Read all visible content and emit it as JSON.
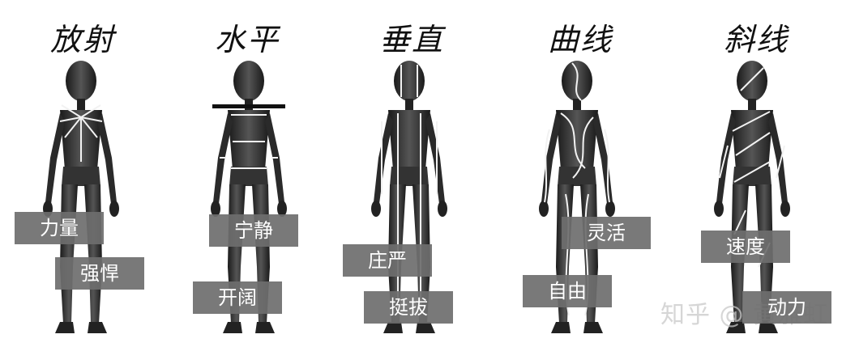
{
  "figures": [
    {
      "id": "radial",
      "title": "放射",
      "tags": [
        "力量",
        "强悍"
      ]
    },
    {
      "id": "horizontal",
      "title": "水平",
      "tags": [
        "宁静",
        "开阔"
      ]
    },
    {
      "id": "vertical",
      "title": "垂直",
      "tags": [
        "庄严",
        "挺拔"
      ]
    },
    {
      "id": "curve",
      "title": "曲线",
      "tags": [
        "灵活",
        "自由"
      ]
    },
    {
      "id": "diagonal",
      "title": "斜线",
      "tags": [
        "速度",
        "动力"
      ]
    }
  ],
  "watermark": "知乎 @ 黄雅虹",
  "colors": {
    "figure": "#2a2a2a",
    "highlight": "#f2f2f2",
    "tag_bg": "#6e6e6e"
  }
}
